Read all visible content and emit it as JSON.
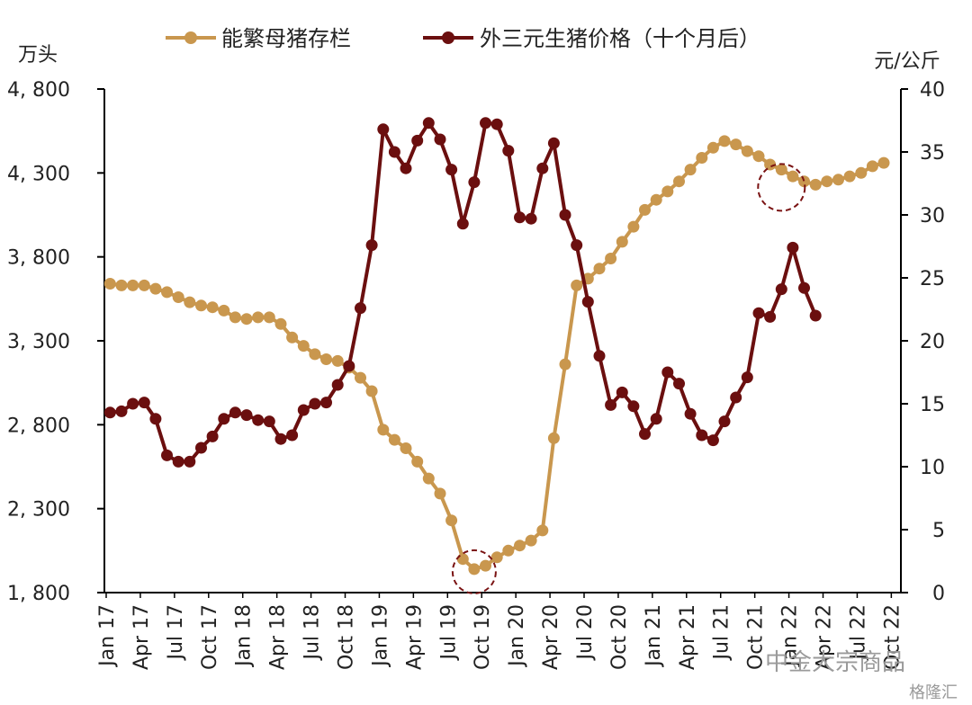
{
  "chart_data": {
    "type": "line",
    "x_labels": [
      "Jan 17",
      "Apr 17",
      "Jul 17",
      "Oct 17",
      "Jan 18",
      "Apr 18",
      "Jul 18",
      "Oct 18",
      "Jan 19",
      "Apr 19",
      "Jul 19",
      "Oct 19",
      "Jan 20",
      "Apr 20",
      "Jul 20",
      "Oct 20",
      "Jan 21",
      "Apr 21",
      "Jul 21",
      "Oct 21",
      "Jan 22",
      "Apr 22",
      "Jul 22",
      "Oct 22"
    ],
    "left_axis": {
      "unit": "万头",
      "ylim": [
        1800,
        4800
      ],
      "ticks": [
        "4, 800",
        "4, 300",
        "3, 800",
        "3, 300",
        "2, 800",
        "2, 300",
        "1, 800"
      ]
    },
    "right_axis": {
      "unit": "元/公斤",
      "ylim": [
        0,
        40
      ],
      "ticks": [
        "40",
        "35",
        "30",
        "25",
        "20",
        "15",
        "10",
        "5",
        "0"
      ]
    },
    "legend_position": "top",
    "series": [
      {
        "name": "能繁母猪存栏",
        "axis": "left",
        "color": "#C9974E",
        "start_month": 0,
        "values": [
          3640,
          3630,
          3630,
          3630,
          3610,
          3590,
          3560,
          3530,
          3510,
          3500,
          3480,
          3440,
          3430,
          3440,
          3440,
          3400,
          3320,
          3270,
          3220,
          3190,
          3180,
          3140,
          3080,
          3000,
          2770,
          2710,
          2660,
          2580,
          2480,
          2390,
          2230,
          2000,
          1940,
          1960,
          2010,
          2050,
          2080,
          2110,
          2170,
          2720,
          3160,
          3630,
          3670,
          3730,
          3790,
          3890,
          3980,
          4080,
          4140,
          4190,
          4250,
          4320,
          4390,
          4450,
          4490,
          4470,
          4430,
          4400,
          4350,
          4320,
          4280,
          4250,
          4230,
          4250,
          4260,
          4280,
          4300,
          4340,
          4360
        ]
      },
      {
        "name": "外三元生猪价格（十个月后）",
        "axis": "right",
        "color": "#6B0F0F",
        "start_month": 0,
        "values": [
          14.3,
          14.4,
          15.0,
          15.1,
          13.8,
          10.9,
          10.4,
          10.4,
          11.5,
          12.4,
          13.8,
          14.3,
          14.1,
          13.7,
          13.6,
          12.2,
          12.5,
          14.5,
          15.0,
          15.1,
          16.5,
          18.0,
          22.6,
          27.6,
          36.8,
          35.0,
          33.7,
          35.9,
          37.3,
          36.0,
          33.6,
          29.3,
          32.6,
          37.3,
          37.2,
          35.1,
          29.8,
          29.7,
          33.7,
          35.7,
          30.0,
          27.6,
          23.1,
          18.8,
          14.9,
          15.9,
          14.8,
          12.6,
          13.8,
          17.5,
          16.6,
          14.2,
          12.5,
          12.1,
          13.6,
          15.5,
          17.1,
          22.2,
          21.9,
          24.1,
          27.4,
          24.2,
          22.0
        ]
      }
    ],
    "annotations": [
      "circle",
      "circle",
      "circle"
    ]
  },
  "watermark": {
    "line1": "中金大宗商品",
    "line2": "格隆汇"
  }
}
